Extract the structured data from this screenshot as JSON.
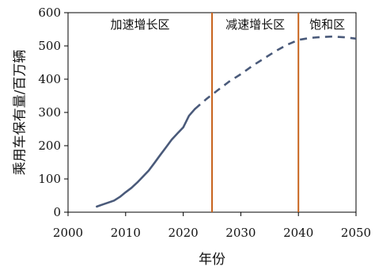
{
  "chart_data": {
    "type": "line",
    "title": "",
    "xlabel": "年份",
    "ylabel": "乘用车保有量/百万辆",
    "xlim": [
      2000,
      2050
    ],
    "ylim": [
      0,
      600
    ],
    "x_ticks": [
      2000,
      2010,
      2020,
      2030,
      2040,
      2050
    ],
    "y_ticks": [
      0,
      100,
      200,
      300,
      400,
      500,
      600
    ],
    "x_tick_labels": [
      "2000",
      "2010",
      "2020",
      "2030",
      "2040",
      "2050"
    ],
    "y_tick_labels": [
      "0",
      "100",
      "200",
      "300",
      "400",
      "500",
      "600"
    ],
    "grid": false,
    "legend": "none",
    "series": [
      {
        "style": "solid",
        "color": "#4a5a7a",
        "x": [
          2005,
          2006,
          2007,
          2008,
          2009,
          2010,
          2011,
          2012,
          2013,
          2014,
          2015,
          2016,
          2017,
          2018,
          2019,
          2020,
          2021,
          2022
        ],
        "y": [
          17,
          23,
          29,
          35,
          46,
          60,
          73,
          89,
          107,
          125,
          148,
          172,
          195,
          218,
          237,
          255,
          290,
          310
        ]
      },
      {
        "style": "dashed",
        "color": "#4a5a7a",
        "x": [
          2022,
          2024,
          2026,
          2028,
          2030,
          2032,
          2034,
          2036,
          2038,
          2040,
          2042,
          2044,
          2046,
          2048,
          2050
        ],
        "y": [
          310,
          340,
          367,
          393,
          415,
          440,
          462,
          484,
          503,
          518,
          524,
          527,
          528,
          526,
          522
        ]
      }
    ],
    "vertical_lines": [
      {
        "x": 2025,
        "color": "#c8641e"
      },
      {
        "x": 2040,
        "color": "#c8641e"
      }
    ],
    "region_labels": [
      {
        "text": "加速增长区",
        "x": 2012.5
      },
      {
        "text": "减速增长区",
        "x": 2032.5
      },
      {
        "text": "饱和区",
        "x": 2045.0
      }
    ]
  }
}
